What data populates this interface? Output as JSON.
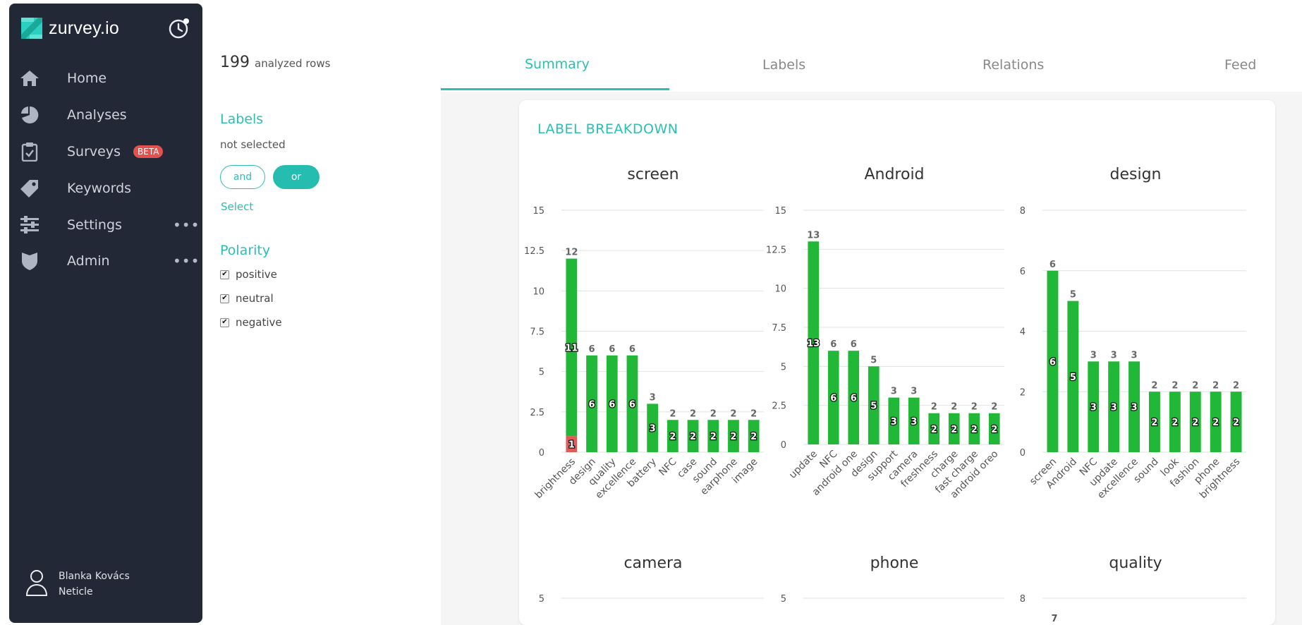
{
  "app": {
    "name": "zurvey.io"
  },
  "sidebar": {
    "items": [
      {
        "label": "Home",
        "icon": "home-icon"
      },
      {
        "label": "Analyses",
        "icon": "pie-chart-icon"
      },
      {
        "label": "Surveys",
        "icon": "clipboard-icon",
        "badge": "BETA"
      },
      {
        "label": "Keywords",
        "icon": "tag-icon"
      },
      {
        "label": "Settings",
        "icon": "sliders-icon",
        "more": "•••"
      },
      {
        "label": "Admin",
        "icon": "shield-icon",
        "more": "•••"
      }
    ],
    "user": {
      "name": "Blanka Kovács",
      "org": "Neticle"
    }
  },
  "filters": {
    "rows_count": "199",
    "rows_label": "analyzed rows",
    "labels_heading": "Labels",
    "not_selected": "not selected",
    "and_label": "and",
    "or_label": "or",
    "select_label": "Select",
    "polarity_heading": "Polarity",
    "polarity": [
      {
        "label": "positive",
        "checked": true
      },
      {
        "label": "neutral",
        "checked": true
      },
      {
        "label": "negative",
        "checked": true
      }
    ]
  },
  "tabs": [
    {
      "label": "Summary",
      "active": true
    },
    {
      "label": "Labels",
      "active": false
    },
    {
      "label": "Relations",
      "active": false
    },
    {
      "label": "Feed",
      "active": false
    }
  ],
  "card": {
    "title": "LABEL BREAKDOWN"
  },
  "colors": {
    "accent": "#2cbfb1",
    "positive": "#22b837",
    "negative": "#e05a57",
    "sidebar": "#232836"
  },
  "chart_data": [
    {
      "type": "bar",
      "title": "screen",
      "ylim": [
        0,
        15
      ],
      "yticks": [
        "0",
        "2.5",
        "5",
        "7.5",
        "10",
        "12.5",
        "15"
      ],
      "categories": [
        "brightness",
        "design",
        "quality",
        "excellence",
        "battery",
        "NFC",
        "case",
        "sound",
        "earphone",
        "image"
      ],
      "totals": [
        12,
        6,
        6,
        6,
        3,
        2,
        2,
        2,
        2,
        2
      ],
      "series": [
        {
          "values": [
            11,
            6,
            6,
            6,
            3,
            2,
            2,
            2,
            2,
            2
          ]
        },
        {
          "values": [
            1,
            0,
            0,
            0,
            0,
            0,
            0,
            0,
            0,
            0
          ]
        }
      ]
    },
    {
      "type": "bar",
      "title": "Android",
      "ylim": [
        0,
        15
      ],
      "yticks": [
        "0",
        "2.5",
        "5",
        "7.5",
        "10",
        "12.5",
        "15"
      ],
      "categories": [
        "update",
        "NFC",
        "android one",
        "design",
        "support",
        "camera",
        "freshness",
        "charge",
        "fast charge",
        "android oreo"
      ],
      "totals": [
        13,
        6,
        6,
        5,
        3,
        3,
        2,
        2,
        2,
        2
      ],
      "series": [
        {
          "values": [
            13,
            6,
            6,
            5,
            3,
            3,
            2,
            2,
            2,
            2
          ]
        },
        {
          "values": [
            0,
            0,
            0,
            0,
            0,
            0,
            0,
            0,
            0,
            0
          ]
        }
      ]
    },
    {
      "type": "bar",
      "title": "design",
      "ylim": [
        0,
        8
      ],
      "yticks": [
        "0",
        "2",
        "4",
        "6",
        "8"
      ],
      "categories": [
        "screen",
        "Android",
        "NFC",
        "update",
        "excellence",
        "sound",
        "look",
        "fashion",
        "phone",
        "brightness"
      ],
      "totals": [
        6,
        5,
        3,
        3,
        3,
        2,
        2,
        2,
        2,
        2
      ],
      "series": [
        {
          "values": [
            6,
            5,
            3,
            3,
            3,
            2,
            2,
            2,
            2,
            2
          ]
        },
        {
          "values": [
            0,
            0,
            0,
            0,
            0,
            0,
            0,
            0,
            0,
            0
          ]
        }
      ]
    },
    {
      "type": "bar",
      "title": "camera",
      "ylim": [
        0,
        5
      ],
      "yticks": [
        "5"
      ]
    },
    {
      "type": "bar",
      "title": "phone",
      "ylim": [
        0,
        5
      ],
      "yticks": [
        "5"
      ]
    },
    {
      "type": "bar",
      "title": "quality",
      "ylim": [
        0,
        8
      ],
      "yticks": [
        "8"
      ],
      "first_total": "7"
    }
  ]
}
